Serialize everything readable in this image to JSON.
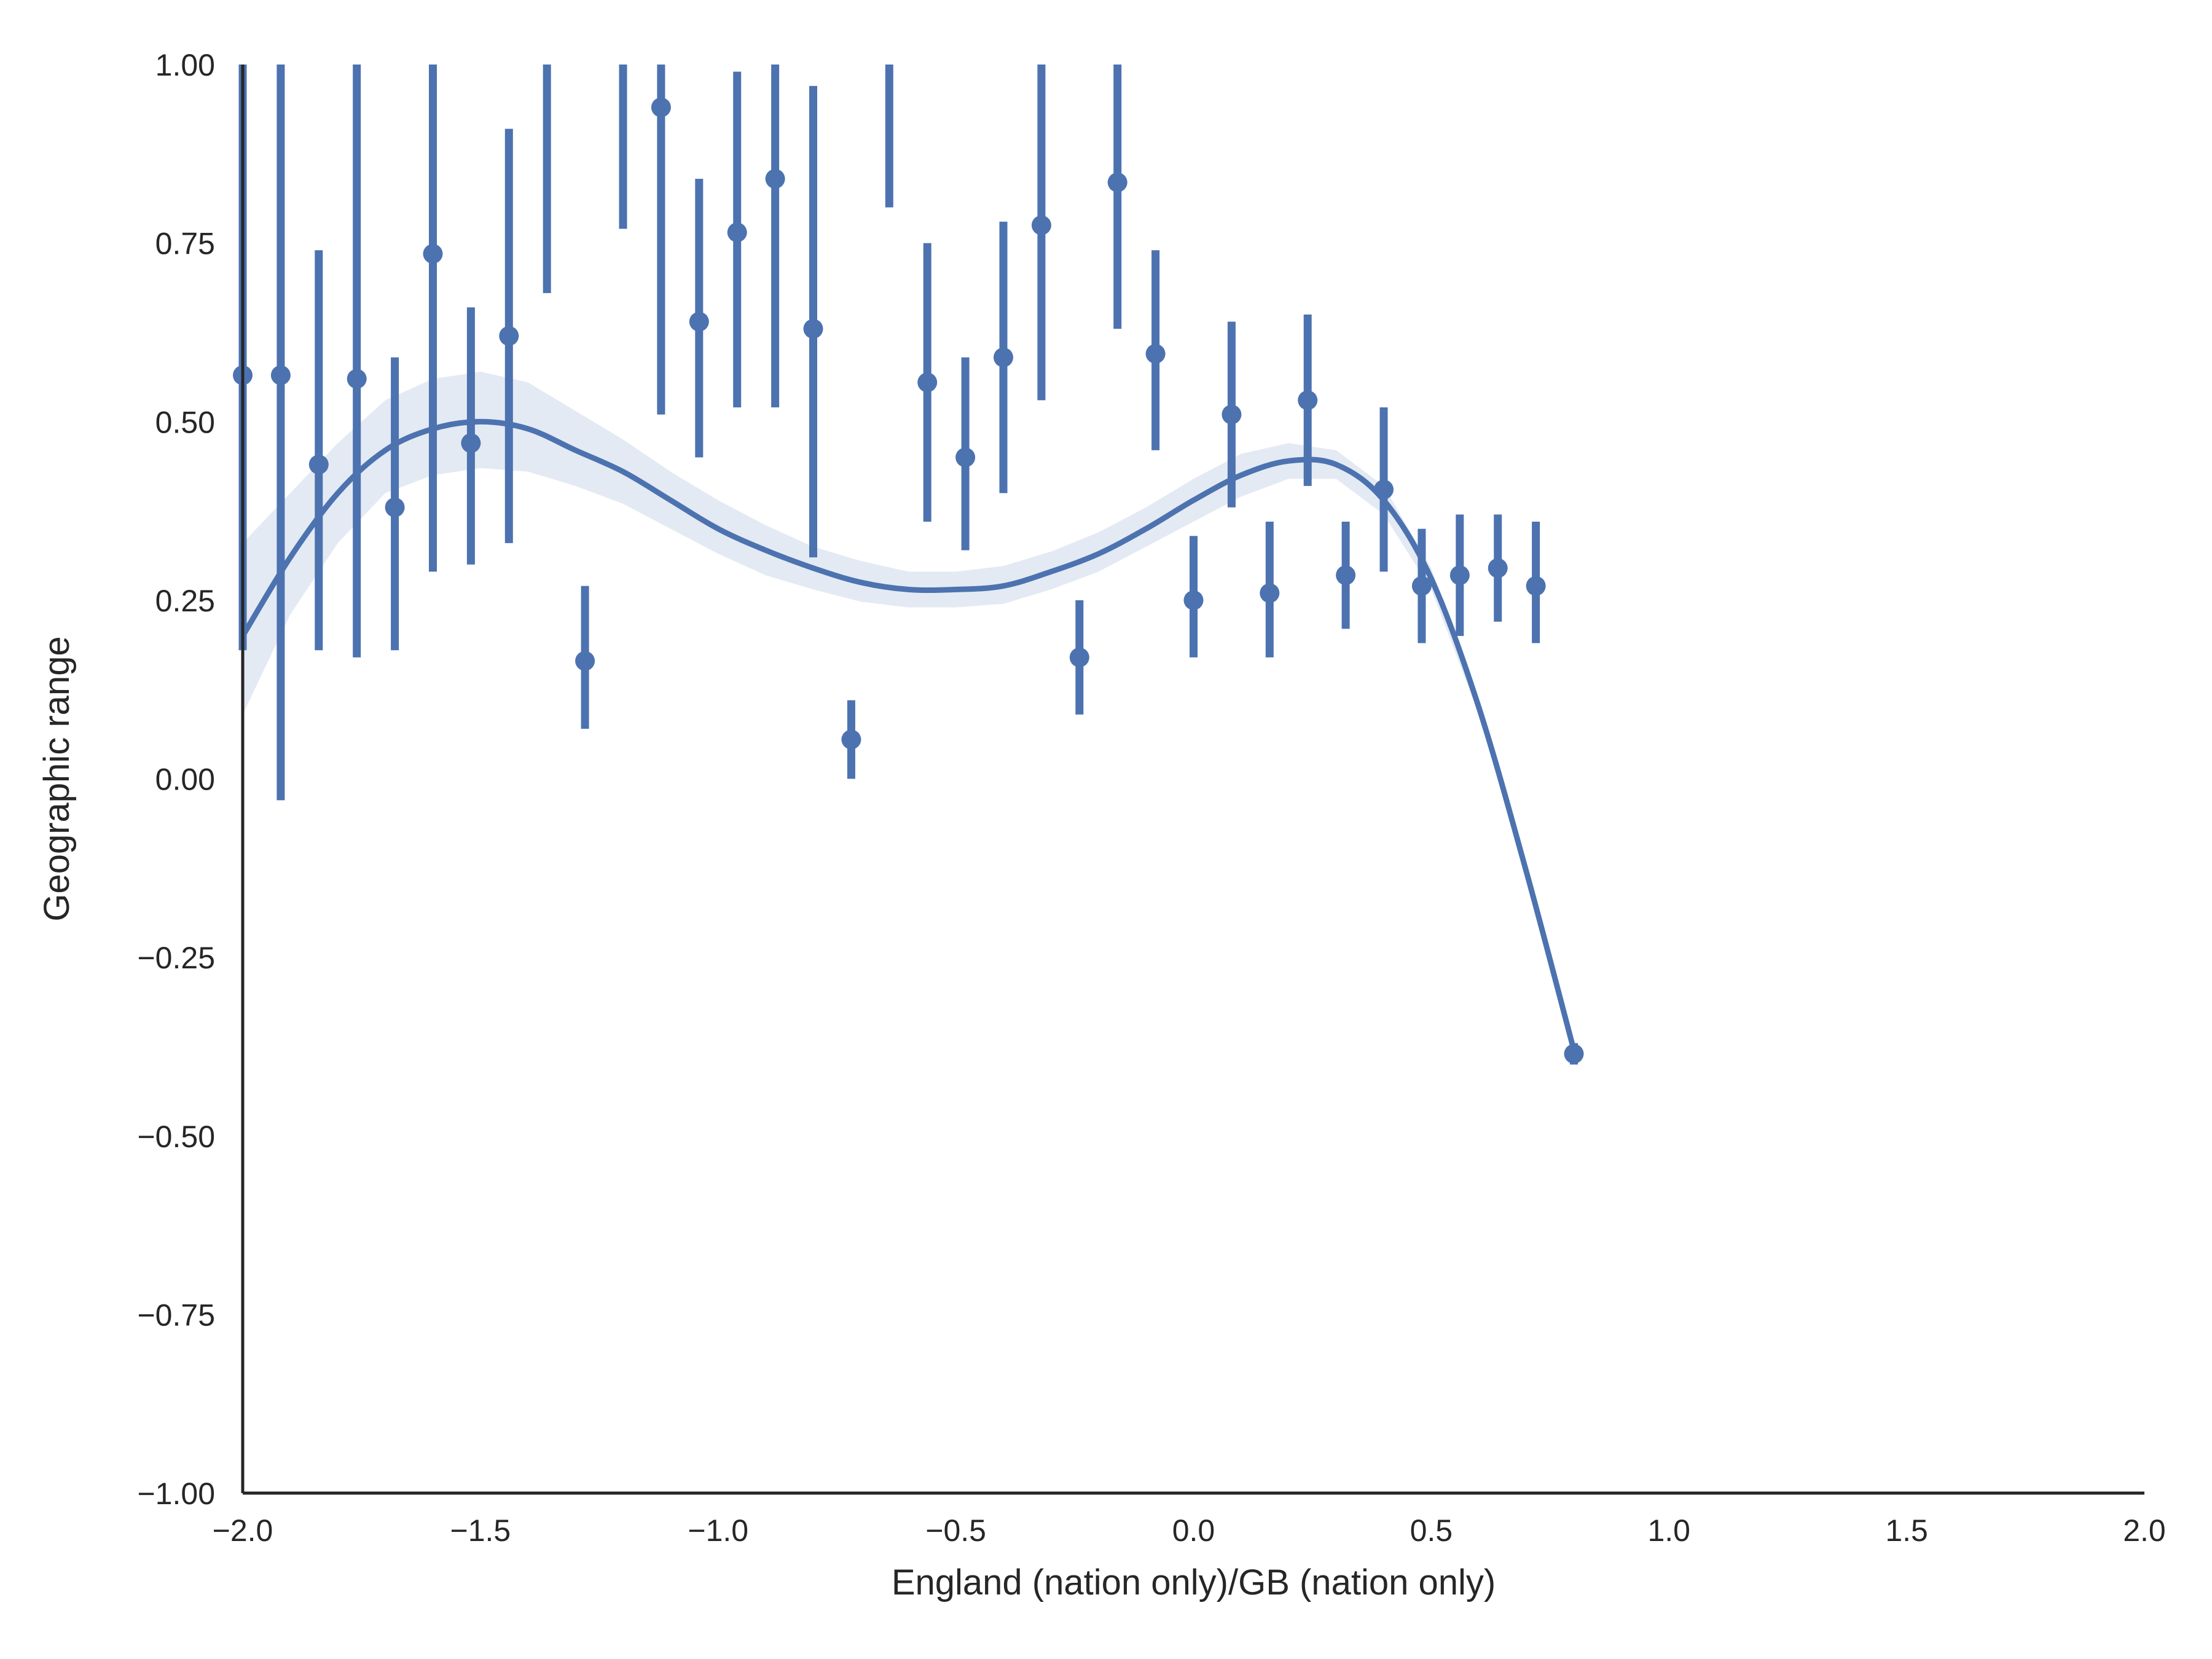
{
  "chart_data": {
    "type": "scatter",
    "title": "",
    "xlabel": "England (nation only)/GB (nation only)",
    "ylabel": "Geographic range",
    "xlim": [
      -2.0,
      2.0
    ],
    "ylim": [
      -1.0,
      1.0
    ],
    "x_ticks": [
      -2.0,
      -1.5,
      -1.0,
      -0.5,
      0.0,
      0.5,
      1.0,
      1.5,
      2.0
    ],
    "x_tick_labels": [
      "−2.0",
      "−1.5",
      "−1.0",
      "−0.5",
      "0.0",
      "0.5",
      "1.0",
      "1.5",
      "2.0"
    ],
    "y_ticks": [
      -1.0,
      -0.75,
      -0.5,
      -0.25,
      0.0,
      0.25,
      0.5,
      0.75,
      1.0
    ],
    "y_tick_labels": [
      "−1.00",
      "−0.75",
      "−0.50",
      "−0.25",
      "0.00",
      "0.25",
      "0.50",
      "0.75",
      "1.00"
    ],
    "grid": false,
    "legend": "none",
    "color": "#4c72b0",
    "band_color": "#4c72b0",
    "points": [
      {
        "x": -2.0,
        "y": 0.565,
        "lo": 0.18,
        "hi": 1.05
      },
      {
        "x": -1.92,
        "y": 0.565,
        "lo": -0.03,
        "hi": 1.05
      },
      {
        "x": -1.84,
        "y": 0.44,
        "lo": 0.18,
        "hi": 0.74
      },
      {
        "x": -1.76,
        "y": 0.56,
        "lo": 0.17,
        "hi": 1.05
      },
      {
        "x": -1.68,
        "y": 0.38,
        "lo": 0.18,
        "hi": 0.59
      },
      {
        "x": -1.6,
        "y": 0.735,
        "lo": 0.29,
        "hi": 1.05
      },
      {
        "x": -1.52,
        "y": 0.47,
        "lo": 0.3,
        "hi": 0.66
      },
      {
        "x": -1.44,
        "y": 0.62,
        "lo": 0.33,
        "hi": 0.91
      },
      {
        "x": -1.36,
        "y": 1.05,
        "lo": 0.68,
        "hi": 1.05
      },
      {
        "x": -1.28,
        "y": 0.165,
        "lo": 0.07,
        "hi": 0.27
      },
      {
        "x": -1.2,
        "y": 1.05,
        "lo": 0.77,
        "hi": 1.05
      },
      {
        "x": -1.12,
        "y": 0.94,
        "lo": 0.51,
        "hi": 1.05
      },
      {
        "x": -1.04,
        "y": 0.64,
        "lo": 0.45,
        "hi": 0.84
      },
      {
        "x": -0.96,
        "y": 0.765,
        "lo": 0.52,
        "hi": 0.99
      },
      {
        "x": -0.88,
        "y": 0.84,
        "lo": 0.52,
        "hi": 1.05
      },
      {
        "x": -0.8,
        "y": 0.63,
        "lo": 0.31,
        "hi": 0.97
      },
      {
        "x": -0.72,
        "y": 0.055,
        "lo": 0.0,
        "hi": 0.11
      },
      {
        "x": -0.64,
        "y": 1.05,
        "lo": 0.8,
        "hi": 1.05
      },
      {
        "x": -0.56,
        "y": 0.555,
        "lo": 0.36,
        "hi": 0.75
      },
      {
        "x": -0.48,
        "y": 0.45,
        "lo": 0.32,
        "hi": 0.59
      },
      {
        "x": -0.4,
        "y": 0.59,
        "lo": 0.4,
        "hi": 0.78
      },
      {
        "x": -0.32,
        "y": 0.775,
        "lo": 0.53,
        "hi": 1.05
      },
      {
        "x": -0.24,
        "y": 0.17,
        "lo": 0.09,
        "hi": 0.25
      },
      {
        "x": -0.16,
        "y": 0.835,
        "lo": 0.63,
        "hi": 1.05
      },
      {
        "x": -0.08,
        "y": 0.595,
        "lo": 0.46,
        "hi": 0.74
      },
      {
        "x": 0.0,
        "y": 0.25,
        "lo": 0.17,
        "hi": 0.34
      },
      {
        "x": 0.08,
        "y": 0.51,
        "lo": 0.38,
        "hi": 0.64
      },
      {
        "x": 0.16,
        "y": 0.26,
        "lo": 0.17,
        "hi": 0.36
      },
      {
        "x": 0.24,
        "y": 0.53,
        "lo": 0.41,
        "hi": 0.65
      },
      {
        "x": 0.32,
        "y": 0.285,
        "lo": 0.21,
        "hi": 0.36
      },
      {
        "x": 0.4,
        "y": 0.405,
        "lo": 0.29,
        "hi": 0.52
      },
      {
        "x": 0.48,
        "y": 0.27,
        "lo": 0.19,
        "hi": 0.35
      },
      {
        "x": 0.56,
        "y": 0.285,
        "lo": 0.2,
        "hi": 0.37
      },
      {
        "x": 0.64,
        "y": 0.295,
        "lo": 0.22,
        "hi": 0.37
      },
      {
        "x": 0.72,
        "y": 0.27,
        "lo": 0.19,
        "hi": 0.36
      },
      {
        "x": 0.8,
        "y": -0.385,
        "lo": -0.4,
        "hi": -0.37
      }
    ],
    "fit_line": {
      "x": [
        -2.0,
        -1.9,
        -1.8,
        -1.7,
        -1.6,
        -1.5,
        -1.4,
        -1.3,
        -1.2,
        -1.1,
        -1.0,
        -0.9,
        -0.8,
        -0.7,
        -0.6,
        -0.5,
        -0.4,
        -0.3,
        -0.2,
        -0.1,
        0.0,
        0.1,
        0.2,
        0.3,
        0.4,
        0.5,
        0.6,
        0.7,
        0.8
      ],
      "y": [
        0.2,
        0.31,
        0.4,
        0.46,
        0.49,
        0.5,
        0.49,
        0.46,
        0.43,
        0.39,
        0.35,
        0.32,
        0.295,
        0.275,
        0.265,
        0.265,
        0.27,
        0.29,
        0.315,
        0.35,
        0.39,
        0.425,
        0.445,
        0.44,
        0.39,
        0.28,
        0.1,
        -0.13,
        -0.38
      ],
      "band_lo": [
        0.09,
        0.23,
        0.33,
        0.4,
        0.425,
        0.435,
        0.43,
        0.41,
        0.385,
        0.35,
        0.315,
        0.285,
        0.265,
        0.248,
        0.24,
        0.24,
        0.245,
        0.265,
        0.29,
        0.325,
        0.36,
        0.395,
        0.42,
        0.42,
        0.37,
        0.265,
        0.09,
        -0.14,
        -0.39
      ],
      "band_hi": [
        0.33,
        0.4,
        0.47,
        0.53,
        0.56,
        0.57,
        0.555,
        0.515,
        0.475,
        0.43,
        0.39,
        0.355,
        0.325,
        0.305,
        0.29,
        0.29,
        0.298,
        0.318,
        0.345,
        0.38,
        0.42,
        0.455,
        0.47,
        0.46,
        0.41,
        0.295,
        0.11,
        -0.12,
        -0.37
      ]
    }
  }
}
